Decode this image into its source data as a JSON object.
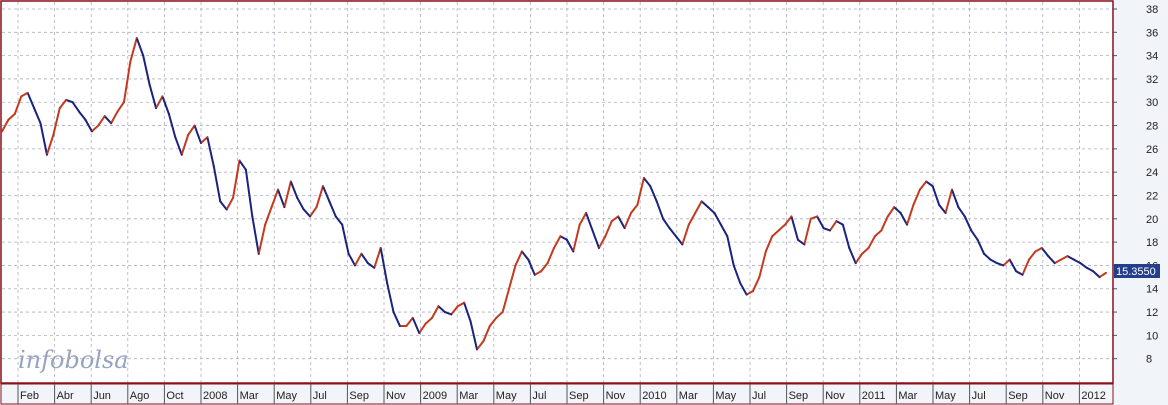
{
  "chart_data": {
    "type": "line",
    "watermark": "infobolsa",
    "last_price_label": "15.3550",
    "y_ticks": [
      8,
      10,
      12,
      14,
      16,
      18,
      20,
      22,
      24,
      26,
      28,
      30,
      32,
      34,
      36,
      38
    ],
    "ylim": [
      6,
      38.6
    ],
    "grid": true,
    "x_tick_labels": [
      "Feb",
      "Abr",
      "Jun",
      "Ago",
      "Oct",
      "2008",
      "Mar",
      "May",
      "Jul",
      "Sep",
      "Nov",
      "2009",
      "Mar",
      "May",
      "Jul",
      "Sep",
      "Nov",
      "2010",
      "Mar",
      "May",
      "Jul",
      "Sep",
      "Nov",
      "2011",
      "Mar",
      "May",
      "Jul",
      "Sep",
      "Nov",
      "2012"
    ],
    "colors": {
      "up": "#c43a1e",
      "down": "#1a237e",
      "grid": "#aab0bd",
      "background": "#ffffff",
      "page": "#f1f4f8",
      "label_bg": "#233f8b"
    },
    "series": [
      {
        "values": [
          27.5,
          28.5,
          29.0,
          30.5,
          30.8,
          29.5,
          28.2,
          25.5,
          27.2,
          29.5,
          30.2,
          30.0,
          29.2,
          28.5,
          27.5,
          28.0,
          28.8,
          28.2,
          29.2,
          30.0,
          33.5,
          35.5,
          34.0,
          31.5,
          29.5,
          30.5,
          29.0,
          27.0,
          25.5,
          27.2,
          28.0,
          26.5,
          27.0,
          24.5,
          21.5,
          20.8,
          21.8,
          25.0,
          24.2,
          20.2,
          17.0,
          19.5,
          21.0,
          22.5,
          21.0,
          23.2,
          21.8,
          20.8,
          20.2,
          21.0,
          22.8,
          21.5,
          20.2,
          19.5,
          17.0,
          16.0,
          17.0,
          16.2,
          15.8,
          17.5,
          14.5,
          12.0,
          10.8,
          10.8,
          11.5,
          10.2,
          11.0,
          11.5,
          12.5,
          12.0,
          11.8,
          12.5,
          12.8,
          11.2,
          8.8,
          9.5,
          10.8,
          11.5,
          12.0,
          14.0,
          16.0,
          17.2,
          16.5,
          15.2,
          15.5,
          16.2,
          17.5,
          18.5,
          18.2,
          17.2,
          19.5,
          20.5,
          19.0,
          17.5,
          18.5,
          19.8,
          20.2,
          19.2,
          20.5,
          21.2,
          23.5,
          22.8,
          21.5,
          20.0,
          19.2,
          18.5,
          17.8,
          19.5,
          20.5,
          21.5,
          21.0,
          20.5,
          19.5,
          18.5,
          16.0,
          14.5,
          13.5,
          13.8,
          15.0,
          17.2,
          18.5,
          19.0,
          19.5,
          20.2,
          18.2,
          17.8,
          20.0,
          20.2,
          19.2,
          19.0,
          19.8,
          19.5,
          17.5,
          16.2,
          17.0,
          17.5,
          18.5,
          19.0,
          20.2,
          21.0,
          20.5,
          19.5,
          21.2,
          22.5,
          23.2,
          22.8,
          21.2,
          20.5,
          22.5,
          21.0,
          20.2,
          19.0,
          18.2,
          17.0,
          16.5,
          16.2,
          16.0,
          16.5,
          15.5,
          15.2,
          16.5,
          17.2,
          17.5,
          16.8,
          16.2,
          16.5,
          16.8,
          16.5,
          16.2,
          15.8,
          15.5,
          15.0,
          15.36
        ]
      }
    ]
  }
}
